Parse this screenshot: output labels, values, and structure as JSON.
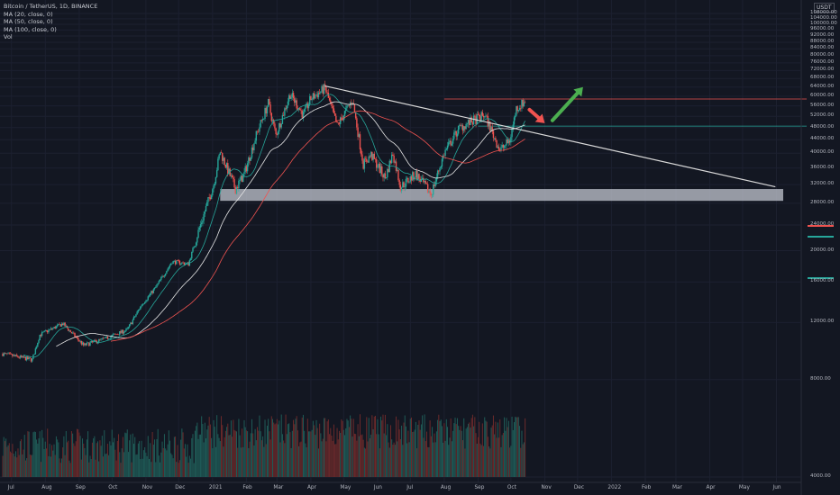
{
  "legend": {
    "symbol": "Bitcoin / TetherUS, 1D, BINANCE",
    "ma20": "MA (20, close, 0)",
    "ma50": "MA (50, close, 0)",
    "ma100": "MA (100, close, 0)",
    "vol": "Vol"
  },
  "currency": "USDT",
  "price_tags": {
    "resistance": "",
    "last_price": "",
    "last_price_sub": "",
    "support": ""
  },
  "colors": {
    "background": "#131722",
    "up": "#26a69a",
    "down": "#ef5350",
    "ma20": "#26a69a",
    "ma50": "#e6e6e6",
    "ma100": "#ef5350",
    "trendline": "#d9d9d9",
    "support_zone": "#b8bcc6",
    "resistance_line": "#ef5350",
    "support_line": "#26a69a",
    "arrow_down": "#ef5350",
    "arrow_up": "#4caf50"
  },
  "chart_data": {
    "type": "candlestick",
    "symbol": "Bitcoin / TetherUS",
    "interval": "1D",
    "exchange": "BINANCE",
    "y_scale": "log",
    "ylim": [
      3800,
      112000
    ],
    "y_ticks": [
      108000,
      104000,
      100000,
      96000,
      92000,
      88000,
      84000,
      80000,
      76000,
      72000,
      68000,
      64000,
      60000,
      56000,
      52000,
      48000,
      44000,
      40000,
      36000,
      32000,
      28000,
      24000,
      20000,
      16000,
      12000,
      8000,
      4000
    ],
    "y_tick_labels": [
      "108000.00",
      "104000.00",
      "100000.00",
      "96000.00",
      "92000.00",
      "88000.00",
      "84000.00",
      "80000.00",
      "76000.00",
      "72000.00",
      "68000.00",
      "64000.00",
      "60000.00",
      "56000.00",
      "52000.00",
      "48000.00",
      "44000.00",
      "40000.00",
      "36000.00",
      "32000.00",
      "28000.00",
      "24000.00",
      "20000.00",
      "16000.00",
      "12000.00",
      "8000.00",
      "4000.00"
    ],
    "x_ticks": [
      "Jul",
      "Aug",
      "Sep",
      "Oct",
      "Nov",
      "Dec",
      "2021",
      "Feb",
      "Mar",
      "Apr",
      "May",
      "Jun",
      "Jul",
      "Aug",
      "Sep",
      "Oct",
      "Nov",
      "Dec",
      "2022",
      "Feb",
      "Mar",
      "Apr",
      "May",
      "Jun"
    ],
    "x_tick_dates": [
      "2020-07-01",
      "2020-08-01",
      "2020-09-01",
      "2020-10-01",
      "2020-11-01",
      "2020-12-01",
      "2021-01-01",
      "2021-02-01",
      "2021-03-01",
      "2021-04-01",
      "2021-05-01",
      "2021-06-01",
      "2021-07-01",
      "2021-08-01",
      "2021-09-01",
      "2021-10-01",
      "2021-11-01",
      "2021-12-01",
      "2022-01-01",
      "2022-02-01",
      "2022-03-01",
      "2022-04-01",
      "2022-05-01",
      "2022-06-01"
    ],
    "price_path": [
      [
        "2020-06-23",
        9600
      ],
      [
        "2020-07-20",
        9200
      ],
      [
        "2020-07-27",
        11000
      ],
      [
        "2020-08-17",
        11900
      ],
      [
        "2020-09-05",
        10200
      ],
      [
        "2020-09-25",
        10700
      ],
      [
        "2020-10-15",
        11400
      ],
      [
        "2020-10-28",
        13600
      ],
      [
        "2020-11-10",
        15400
      ],
      [
        "2020-11-25",
        18500
      ],
      [
        "2020-12-10",
        18200
      ],
      [
        "2020-12-20",
        23500
      ],
      [
        "2021-01-02",
        32000
      ],
      [
        "2021-01-08",
        40500
      ],
      [
        "2021-01-22",
        31000
      ],
      [
        "2021-01-30",
        34500
      ],
      [
        "2021-02-10",
        45500
      ],
      [
        "2021-02-21",
        57000
      ],
      [
        "2021-02-28",
        45500
      ],
      [
        "2021-03-13",
        61000
      ],
      [
        "2021-03-25",
        52500
      ],
      [
        "2021-04-01",
        59000
      ],
      [
        "2021-04-14",
        63500
      ],
      [
        "2021-04-25",
        48500
      ],
      [
        "2021-05-09",
        58500
      ],
      [
        "2021-05-19",
        37000
      ],
      [
        "2021-05-26",
        39500
      ],
      [
        "2021-06-08",
        33500
      ],
      [
        "2021-06-15",
        40000
      ],
      [
        "2021-06-22",
        31500
      ],
      [
        "2021-07-06",
        34500
      ],
      [
        "2021-07-20",
        29900
      ],
      [
        "2021-08-01",
        40000
      ],
      [
        "2021-08-14",
        47500
      ],
      [
        "2021-08-23",
        49500
      ],
      [
        "2021-09-07",
        52500
      ],
      [
        "2021-09-21",
        40800
      ],
      [
        "2021-09-30",
        43800
      ],
      [
        "2021-10-06",
        55000
      ],
      [
        "2021-10-14",
        57800
      ]
    ],
    "annotations": {
      "descending_trendline": [
        [
          "2021-04-14",
          64500
        ],
        [
          "2022-05-31",
          31500
        ]
      ],
      "support_zone": [
        28500,
        31000
      ],
      "resistance_level": 58800,
      "support_level": 48500,
      "arrow_down": [
        [
          "2021-10-18",
          54500
        ],
        [
          "2021-11-01",
          49500
        ]
      ],
      "arrow_up": [
        [
          "2021-11-08",
          50500
        ],
        [
          "2021-12-06",
          64000
        ]
      ]
    }
  }
}
